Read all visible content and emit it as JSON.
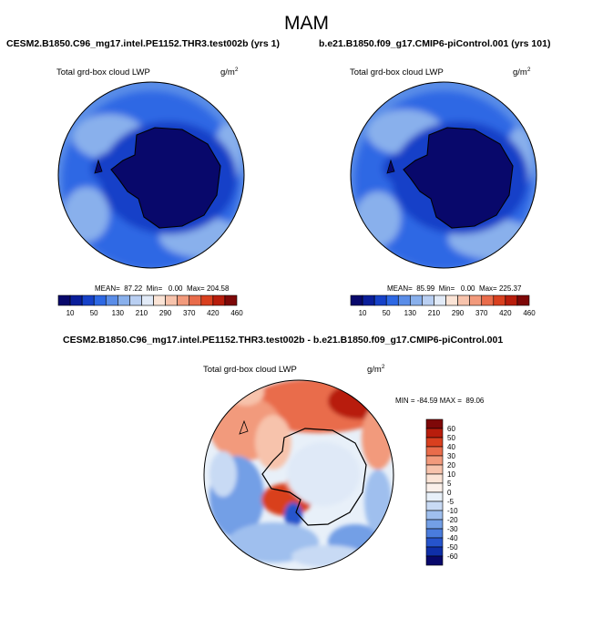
{
  "figure": {
    "title": "MAM",
    "diff_title": "CESM2.B1850.C96_mg17.intel.PE1152.THR3.test002b - b.e21.B1850.f09_g17.CMIP6-piControl.001",
    "diff_variable_label": "Total grd-box cloud LWP",
    "diff_unit": "g/m",
    "diff_unit_exp": "2",
    "diff_stats": "MIN = -84.59 MAX =  89.06"
  },
  "panels": [
    {
      "case_title": "CESM2.B1850.C96_mg17.intel.PE1152.THR3.test002b (yrs 1)",
      "variable_label": "Total grd-box cloud LWP",
      "unit": "g/m",
      "unit_exp": "2",
      "stats": "MEAN=  87.22  Min=   0.00  Max= 204.58"
    },
    {
      "case_title": "b.e21.B1850.f09_g17.CMIP6-piControl.001 (yrs 101)",
      "variable_label": "Total grd-box cloud LWP",
      "unit": "g/m",
      "unit_exp": "2",
      "stats": "MEAN=  85.99  Min=   0.00  Max= 225.37"
    }
  ],
  "chart_data": [
    {
      "type": "heatmap",
      "title": "CESM2.B1850.C96_mg17.intel.PE1152.THR3.test002b (yrs 1)",
      "variable": "Total grd-box cloud LWP",
      "units": "g/m2",
      "projection": "south polar stereographic",
      "stats": {
        "mean": 87.22,
        "min": 0.0,
        "max": 204.58
      },
      "colorbar": {
        "orientation": "horizontal",
        "labels": [
          "10",
          "50",
          "130",
          "210",
          "290",
          "370",
          "420",
          "460"
        ],
        "colors": [
          "#08086b",
          "#0a1e9a",
          "#1641c8",
          "#2d68e4",
          "#5a8de8",
          "#89b0ec",
          "#b9cff2",
          "#e2ebf8",
          "#fbe4d6",
          "#f7c3ac",
          "#f29a7c",
          "#e96c4b",
          "#d9401f",
          "#b81d0c",
          "#7e0808"
        ]
      }
    },
    {
      "type": "heatmap",
      "title": "b.e21.B1850.f09_g17.CMIP6-piControl.001 (yrs 101)",
      "variable": "Total grd-box cloud LWP",
      "units": "g/m2",
      "projection": "south polar stereographic",
      "stats": {
        "mean": 85.99,
        "min": 0.0,
        "max": 225.37
      },
      "colorbar": {
        "orientation": "horizontal",
        "labels": [
          "10",
          "50",
          "130",
          "210",
          "290",
          "370",
          "420",
          "460"
        ],
        "colors": [
          "#08086b",
          "#0a1e9a",
          "#1641c8",
          "#2d68e4",
          "#5a8de8",
          "#89b0ec",
          "#b9cff2",
          "#e2ebf8",
          "#fbe4d6",
          "#f7c3ac",
          "#f29a7c",
          "#e96c4b",
          "#d9401f",
          "#b81d0c",
          "#7e0808"
        ]
      }
    },
    {
      "type": "heatmap",
      "title": "CESM2.B1850.C96_mg17.intel.PE1152.THR3.test002b - b.e21.B1850.f09_g17.CMIP6-piControl.001",
      "variable": "Total grd-box cloud LWP",
      "units": "g/m2",
      "projection": "south polar stereographic",
      "stats": {
        "min": -84.59,
        "max": 89.06
      },
      "colorbar": {
        "orientation": "vertical",
        "labels": [
          "60",
          "50",
          "40",
          "30",
          "20",
          "10",
          "5",
          "0",
          "-5",
          "-10",
          "-20",
          "-30",
          "-40",
          "-50",
          "-60"
        ],
        "colors": [
          "#7e0808",
          "#b81d0c",
          "#d9401f",
          "#e96c4b",
          "#f29a7c",
          "#f7c3ac",
          "#fbe4d6",
          "#fbf0ea",
          "#e8f0f9",
          "#c8daf4",
          "#9fbfee",
          "#739fe6",
          "#4a7cdd",
          "#2654cc",
          "#0f2fa8",
          "#08086b"
        ]
      }
    }
  ]
}
